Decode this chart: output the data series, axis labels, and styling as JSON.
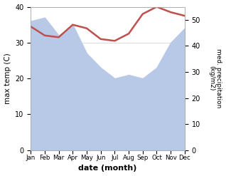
{
  "months": [
    "Jan",
    "Feb",
    "Mar",
    "Apr",
    "May",
    "Jun",
    "Jul",
    "Aug",
    "Sep",
    "Oct",
    "Nov",
    "Dec"
  ],
  "month_indices": [
    0,
    1,
    2,
    3,
    4,
    5,
    6,
    7,
    8,
    9,
    10,
    11
  ],
  "temperature": [
    34.5,
    32.0,
    31.5,
    35.0,
    34.0,
    31.0,
    30.5,
    32.5,
    38.0,
    40.0,
    38.5,
    37.5
  ],
  "precip_left_axis": [
    36.0,
    37.0,
    32.0,
    35.0,
    27.0,
    23.0,
    20.0,
    21.0,
    20.0,
    23.0,
    30.0,
    34.0
  ],
  "temp_color": "#c0504d",
  "precip_fill_color": "#b8c9e8",
  "left_ylim": [
    0,
    40
  ],
  "right_ylim": [
    0,
    55
  ],
  "left_yticks": [
    0,
    10,
    20,
    30,
    40
  ],
  "right_yticks": [
    0,
    10,
    20,
    30,
    40,
    50
  ],
  "xlabel": "date (month)",
  "ylabel_left": "max temp (C)",
  "ylabel_right": "med. precipitation\n(kg/m2)",
  "temp_linewidth": 1.8,
  "background_color": "#ffffff"
}
